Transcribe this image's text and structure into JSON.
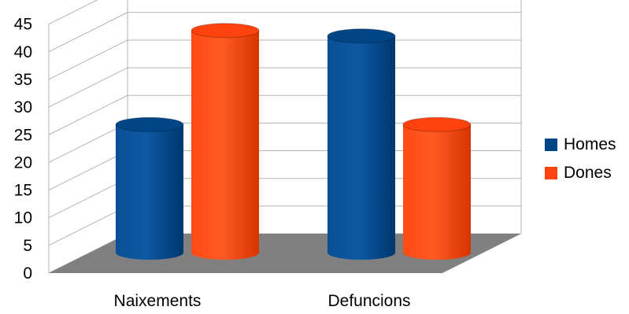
{
  "chart_data": {
    "type": "bar",
    "style": "3d-cylinder",
    "categories": [
      "Naixements",
      "Defuncions"
    ],
    "series": [
      {
        "name": "Homes",
        "values": [
          24,
          40
        ],
        "color": "#004586"
      },
      {
        "name": "Dones",
        "values": [
          41,
          24
        ],
        "color": "#ff420e"
      }
    ],
    "y_ticks": [
      "0",
      "5",
      "10",
      "15",
      "20",
      "25",
      "30",
      "35",
      "40",
      "45"
    ],
    "ylim": [
      0,
      45
    ],
    "grid": true,
    "legend_position": "right",
    "floor_color": "#808080"
  }
}
